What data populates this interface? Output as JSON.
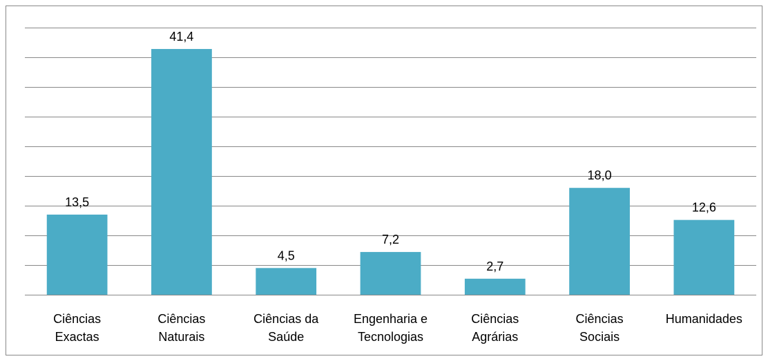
{
  "chart_data": {
    "type": "bar",
    "categories": [
      "Ciências Exactas",
      "Ciências Naturais",
      "Ciências da Saúde",
      "Engenharia e Tecnologias",
      "Ciências Agrárias",
      "Ciências Sociais",
      "Humanidades"
    ],
    "values": [
      13.5,
      41.4,
      4.5,
      7.2,
      2.7,
      18.0,
      12.6
    ],
    "value_labels": [
      "13,5",
      "41,4",
      "4,5",
      "7,2",
      "2,7",
      "18,0",
      "12,6"
    ],
    "color": "#4bacc6",
    "ylim": [
      0,
      45
    ],
    "yticks": [
      0,
      5,
      10,
      15,
      20,
      25,
      30,
      35,
      40,
      45
    ],
    "grid": true
  }
}
